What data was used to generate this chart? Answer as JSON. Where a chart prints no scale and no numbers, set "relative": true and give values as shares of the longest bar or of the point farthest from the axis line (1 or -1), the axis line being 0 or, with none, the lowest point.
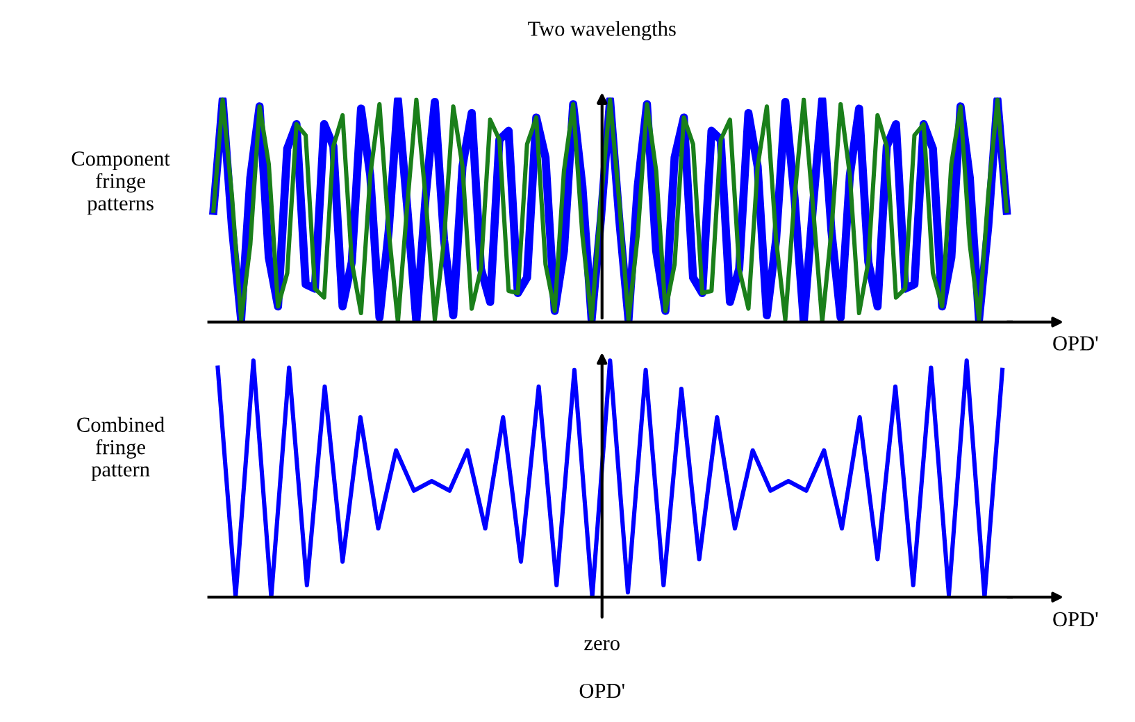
{
  "chart_data": [
    {
      "type": "line",
      "title": "Two wavelengths",
      "ylabel": "Component\nfringe\npatterns",
      "xlabel": "OPD'",
      "relative": true,
      "categories": [
        null,
        null,
        null,
        null,
        null,
        null,
        null,
        null,
        null,
        null,
        null,
        null,
        null,
        null,
        null,
        null,
        null,
        null,
        null,
        null,
        null,
        null,
        null,
        null,
        null,
        null,
        null,
        null,
        null,
        null,
        null,
        null,
        null,
        null,
        null,
        null,
        null,
        null,
        null,
        null,
        null,
        null,
        null,
        null,
        null,
        null,
        null,
        null,
        null,
        null,
        null,
        null,
        null,
        null,
        null,
        null,
        null,
        null,
        null,
        null,
        null,
        null,
        null,
        null,
        null,
        null,
        null,
        null,
        null,
        null,
        null,
        null,
        null,
        null,
        null,
        null,
        null,
        null,
        null,
        null,
        null,
        null,
        null,
        null,
        null,
        null,
        null
      ],
      "series": [
        {
          "color": "#0000ff",
          "values": [
            0.5,
            1,
            0.43,
            0.01,
            0.65,
            0.97,
            0.29,
            0.07,
            0.78,
            0.89,
            0.17,
            0.15,
            0.89,
            0.79,
            0.07,
            0.27,
            0.96,
            0.66,
            0.02,
            0.41,
            1,
            0.52,
            0,
            0.56,
            0.99,
            0.37,
            0.03,
            0.7,
            0.94,
            0.24,
            0.09,
            0.82,
            0.86,
            0.13,
            0.2,
            0.92,
            0.74,
            0.05,
            0.32,
            0.98,
            0.61,
            0.01,
            0.46,
            1,
            0.46,
            0.01,
            0.61,
            0.98,
            0.32,
            0.05,
            0.74,
            0.92,
            0.2,
            0.13,
            0.86,
            0.82,
            0.09,
            0.24,
            0.94,
            0.7,
            0.03,
            0.37,
            0.99,
            0.56,
            0,
            0.52,
            1,
            0.41,
            0.02,
            0.66,
            0.96,
            0.27,
            0.07,
            0.79,
            0.89,
            0.15,
            0.17,
            0.89,
            0.78,
            0.07,
            0.29,
            0.97,
            0.65,
            0.01,
            0.43,
            1,
            0.5
          ]
        },
        {
          "color": "#1a7f1a",
          "values": [
            0.5,
            1,
            0.57,
            0.01,
            0.35,
            0.97,
            0.71,
            0.07,
            0.22,
            0.89,
            0.84,
            0.15,
            0.11,
            0.79,
            0.93,
            0.27,
            0.04,
            0.66,
            0.98,
            0.41,
            0,
            0.52,
            1,
            0.56,
            0.01,
            0.37,
            0.97,
            0.7,
            0.06,
            0.24,
            0.91,
            0.82,
            0.14,
            0.13,
            0.8,
            0.92,
            0.26,
            0.05,
            0.68,
            0.98,
            0.39,
            0.01,
            0.54,
            1,
            0.54,
            0.01,
            0.39,
            0.98,
            0.68,
            0.05,
            0.26,
            0.92,
            0.8,
            0.13,
            0.14,
            0.82,
            0.91,
            0.24,
            0.06,
            0.7,
            0.97,
            0.37,
            0.01,
            0.56,
            1,
            0.52,
            0,
            0.41,
            0.98,
            0.66,
            0.04,
            0.27,
            0.93,
            0.79,
            0.11,
            0.15,
            0.84,
            0.89,
            0.22,
            0.07,
            0.71,
            0.97,
            0.35,
            0.01,
            0.57,
            1,
            0.5
          ]
        }
      ]
    },
    {
      "type": "line",
      "ylabel": "Combined\nfringe\npattern",
      "xlabel": "OPD'",
      "relative": true,
      "annotations": [
        "zero",
        "OPD'"
      ],
      "categories": [
        null,
        null,
        null,
        null,
        null,
        null,
        null,
        null,
        null,
        null,
        null,
        null,
        null,
        null,
        null,
        null,
        null,
        null,
        null,
        null,
        null,
        null,
        null,
        null,
        null,
        null,
        null,
        null,
        null,
        null,
        null,
        null,
        null,
        null,
        null,
        null,
        null,
        null,
        null,
        null,
        null,
        null,
        null,
        null,
        null
      ],
      "series": [
        {
          "color": "#0000ff",
          "values": [
            0.97,
            0,
            1,
            0,
            0.97,
            0.05,
            0.89,
            0.15,
            0.76,
            0.29,
            0.62,
            0.45,
            0.49,
            0.45,
            0.62,
            0.29,
            0.76,
            0.15,
            0.89,
            0.05,
            0.96,
            0,
            1,
            0.02,
            0.96,
            0.05,
            0.88,
            0.16,
            0.76,
            0.29,
            0.62,
            0.45,
            0.49,
            0.45,
            0.62,
            0.29,
            0.76,
            0.16,
            0.89,
            0.05,
            0.97,
            0.01,
            1,
            0,
            0.96
          ]
        }
      ]
    }
  ]
}
